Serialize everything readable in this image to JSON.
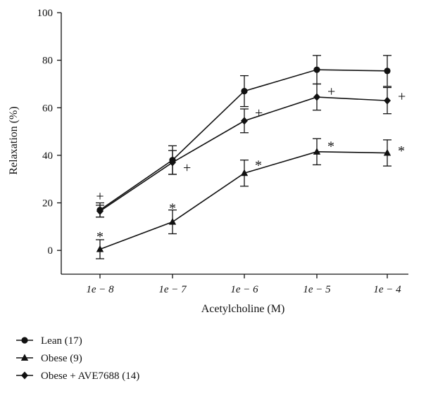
{
  "chart_data": {
    "type": "line",
    "xlabel": "Acetylcholine (M)",
    "ylabel": "Relaxation (%)",
    "ylim": [
      -10,
      100
    ],
    "yticks": [
      0,
      20,
      40,
      60,
      80,
      100
    ],
    "categories": [
      "1e − 8",
      "1e − 7",
      "1e − 6",
      "1e − 5",
      "1e − 4"
    ],
    "grid": false,
    "legend_position": "bottom-left",
    "series": [
      {
        "name": "Lean (17)",
        "marker": "circle",
        "values": [
          17,
          38,
          67,
          76,
          75.5
        ],
        "errors": [
          3,
          6,
          6.5,
          6,
          6.5
        ]
      },
      {
        "name": "Obese (9)",
        "marker": "triangle",
        "values": [
          0.5,
          12,
          32.5,
          41.5,
          41
        ],
        "errors": [
          4,
          5,
          5.5,
          5.5,
          5.5
        ]
      },
      {
        "name": "Obese + AVE7688 (14)",
        "marker": "diamond",
        "values": [
          16.5,
          37,
          54.5,
          64.5,
          63
        ],
        "errors": [
          2.5,
          5,
          5,
          5.5,
          5.5
        ]
      }
    ],
    "annotations": [
      {
        "text": "+",
        "category": 0,
        "y": 23,
        "side": "center"
      },
      {
        "text": "*",
        "category": 0,
        "y": 6,
        "side": "center"
      },
      {
        "text": "+",
        "category": 1,
        "y": 35,
        "side": "right"
      },
      {
        "text": "*",
        "category": 1,
        "y": 18,
        "side": "center"
      },
      {
        "text": "+",
        "category": 2,
        "y": 58,
        "side": "right"
      },
      {
        "text": "*",
        "category": 2,
        "y": 36,
        "side": "right"
      },
      {
        "text": "+",
        "category": 3,
        "y": 67,
        "side": "right"
      },
      {
        "text": "*",
        "category": 3,
        "y": 44,
        "side": "right"
      },
      {
        "text": "+",
        "category": 4,
        "y": 65,
        "side": "right"
      },
      {
        "text": "*",
        "category": 4,
        "y": 42,
        "side": "right"
      }
    ]
  }
}
